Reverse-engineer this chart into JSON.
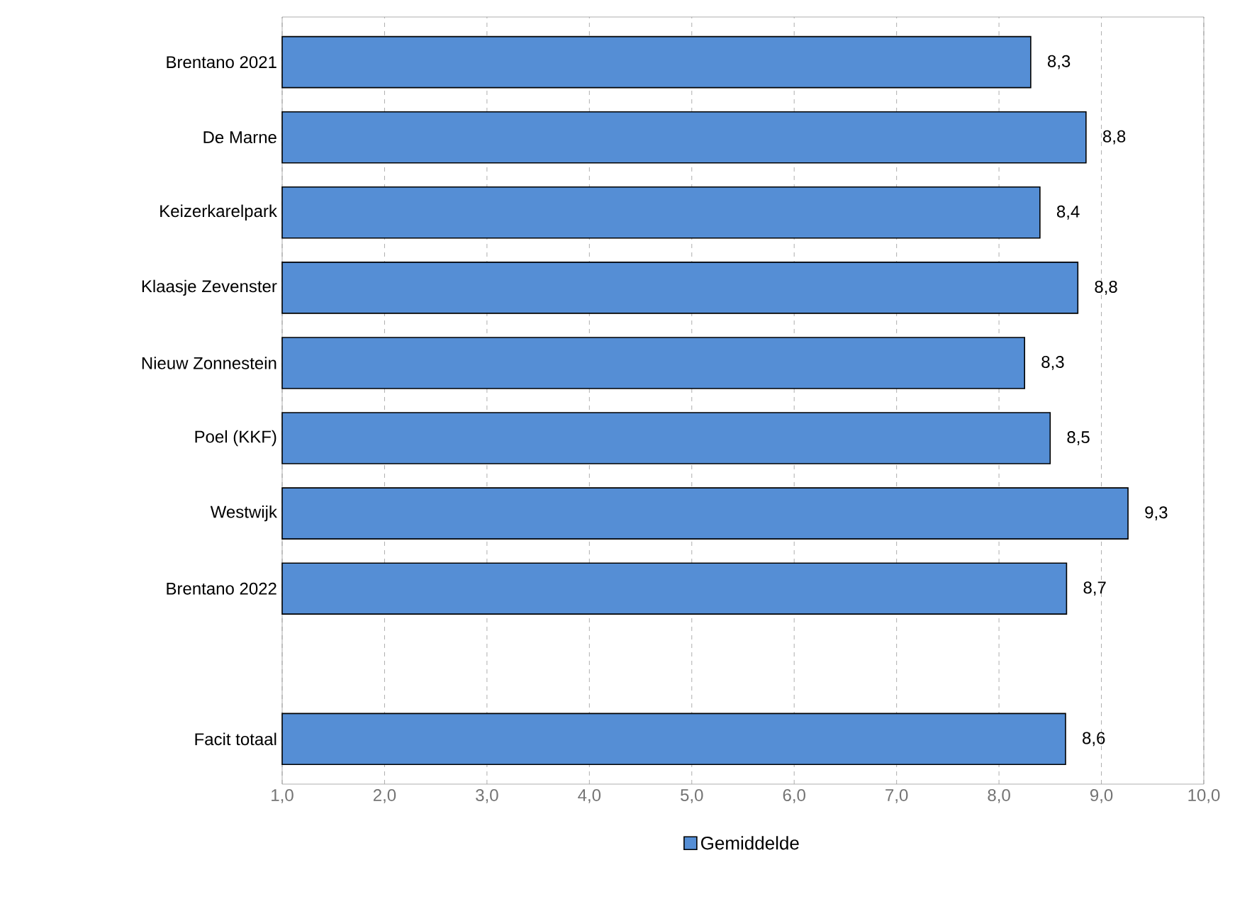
{
  "chart_data": {
    "type": "bar",
    "orientation": "horizontal",
    "categories": [
      "Brentano 2021",
      "De Marne",
      "Keizerkarelpark",
      "Klaasje Zevenster",
      "Nieuw Zonnestein",
      "Poel (KKF)",
      "Westwijk",
      "Brentano 2022",
      null,
      "Facit totaal"
    ],
    "series": [
      {
        "name": "Gemiddelde",
        "color": "#558ed5",
        "values": [
          8.31,
          8.85,
          8.4,
          8.77,
          8.25,
          8.5,
          9.26,
          8.66,
          null,
          8.65
        ],
        "value_labels": [
          "8,3",
          "8,8",
          "8,4",
          "8,8",
          "8,3",
          "8,5",
          "9,3",
          "8,7",
          null,
          "8,6"
        ]
      }
    ],
    "xlim": [
      1,
      10
    ],
    "xticks": [
      {
        "value": 1,
        "label": "1,0"
      },
      {
        "value": 2,
        "label": "2,0"
      },
      {
        "value": 3,
        "label": "3,0"
      },
      {
        "value": 4,
        "label": "4,0"
      },
      {
        "value": 5,
        "label": "5,0"
      },
      {
        "value": 6,
        "label": "6,0"
      },
      {
        "value": 7,
        "label": "7,0"
      },
      {
        "value": 8,
        "label": "8,0"
      },
      {
        "value": 9,
        "label": "9,0"
      },
      {
        "value": 10,
        "label": "10,0"
      }
    ],
    "grid": "x",
    "legend": "bottom"
  }
}
